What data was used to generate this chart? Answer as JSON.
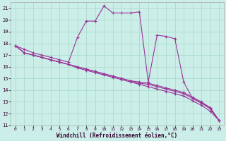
{
  "xlabel": "Windchill (Refroidissement éolien,°C)",
  "background_color": "#cceee8",
  "grid_color": "#aaddcc",
  "line_color": "#993399",
  "x_hours": [
    0,
    1,
    2,
    3,
    4,
    5,
    6,
    7,
    8,
    9,
    10,
    11,
    12,
    13,
    14,
    15,
    16,
    17,
    18,
    19,
    20,
    21,
    22,
    23
  ],
  "temp_series": [
    17.8,
    17.5,
    17.2,
    17.0,
    16.8,
    16.6,
    16.4,
    18.5,
    19.9,
    19.9,
    21.2,
    20.6,
    20.6,
    20.6,
    20.7,
    14.7,
    18.7,
    18.6,
    18.4,
    14.7,
    13.3,
    12.9,
    12.5,
    11.4
  ],
  "linear_series1": [
    17.8,
    17.2,
    17.0,
    16.8,
    16.6,
    16.4,
    16.2,
    16.0,
    15.8,
    15.6,
    15.4,
    15.2,
    15.0,
    14.8,
    14.7,
    14.6,
    14.4,
    14.2,
    14.0,
    13.8,
    13.4,
    13.0,
    12.5,
    11.4
  ],
  "linear_series2": [
    17.8,
    17.2,
    17.0,
    16.8,
    16.6,
    16.4,
    16.2,
    16.0,
    15.8,
    15.6,
    15.4,
    15.2,
    15.0,
    14.8,
    14.6,
    14.5,
    14.3,
    14.1,
    13.9,
    13.7,
    13.3,
    12.9,
    12.4,
    11.4
  ],
  "linear_series3": [
    17.8,
    17.2,
    17.0,
    16.8,
    16.6,
    16.4,
    16.2,
    15.9,
    15.7,
    15.5,
    15.3,
    15.1,
    14.9,
    14.7,
    14.5,
    14.3,
    14.1,
    13.9,
    13.7,
    13.5,
    13.1,
    12.7,
    12.2,
    11.4
  ],
  "ylim": [
    11,
    21.5
  ],
  "xlim": [
    -0.5,
    23.5
  ],
  "yticks": [
    11,
    12,
    13,
    14,
    15,
    16,
    17,
    18,
    19,
    20,
    21
  ],
  "xticks": [
    0,
    1,
    2,
    3,
    4,
    5,
    6,
    7,
    8,
    9,
    10,
    11,
    12,
    13,
    14,
    15,
    16,
    17,
    18,
    19,
    20,
    21,
    22,
    23
  ]
}
